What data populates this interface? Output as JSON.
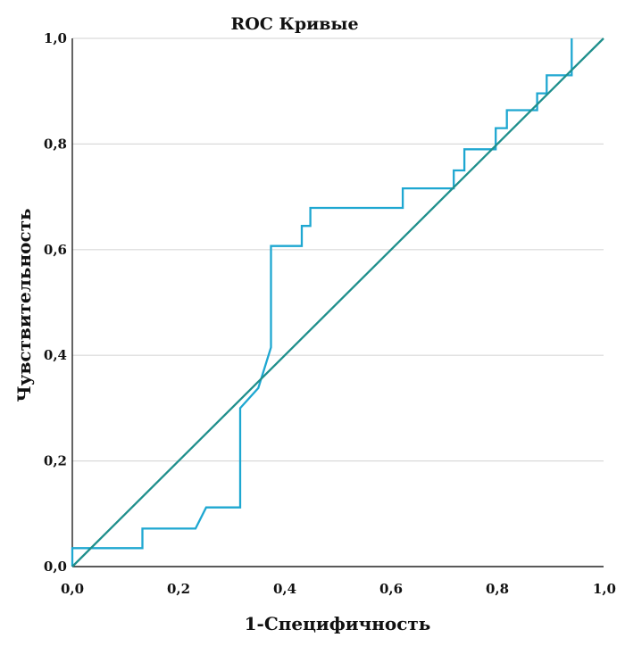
{
  "chart_data": {
    "type": "line",
    "title": "ROC Кривые",
    "xlabel": "1-Специфичность",
    "ylabel": "Чувствительность",
    "xlim": [
      0,
      1
    ],
    "ylim": [
      0,
      1
    ],
    "x_ticks": [
      "0,0",
      "0,2",
      "0,4",
      "0,6",
      "0,8",
      "1,0"
    ],
    "y_ticks": [
      "0,0",
      "0,2",
      "0,4",
      "0,6",
      "0,8",
      "1,0"
    ],
    "grid": true,
    "series": [
      {
        "color": "#1ea7d1",
        "x": [
          0,
          0,
          0.132,
          0.132,
          0.232,
          0.252,
          0.252,
          0.316,
          0.316,
          0.35,
          0.374,
          0.374,
          0.432,
          0.432,
          0.448,
          0.448,
          0.622,
          0.622,
          0.718,
          0.718,
          0.738,
          0.738,
          0.797,
          0.797,
          0.818,
          0.818,
          0.875,
          0.875,
          0.893,
          0.893,
          0.94,
          0.94
        ],
        "y": [
          0,
          0.035,
          0.035,
          0.072,
          0.072,
          0.112,
          0.112,
          0.112,
          0.3,
          0.338,
          0.415,
          0.607,
          0.607,
          0.645,
          0.645,
          0.679,
          0.679,
          0.716,
          0.716,
          0.75,
          0.75,
          0.79,
          0.79,
          0.83,
          0.83,
          0.864,
          0.864,
          0.896,
          0.896,
          0.93,
          0.93,
          1.0
        ]
      },
      {
        "color": "#1f8f8c",
        "x": [
          0,
          1
        ],
        "y": [
          0,
          1
        ]
      }
    ]
  }
}
